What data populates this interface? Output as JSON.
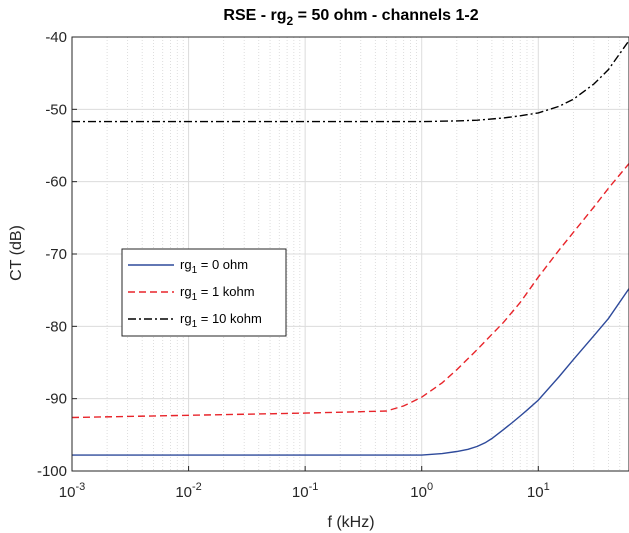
{
  "chart_data": {
    "type": "line",
    "title": {
      "prefix": "RSE - rg",
      "subscript": "2",
      "suffix": " = 50 ohm - channels 1-2"
    },
    "xlabel": "f (kHz)",
    "ylabel": "CT (dB)",
    "x_scale": "log",
    "xlim": [
      0.001,
      60
    ],
    "ylim": [
      -100,
      -40
    ],
    "x_ticks": [
      {
        "base": "10",
        "exp": "-3",
        "value": 0.001
      },
      {
        "base": "10",
        "exp": "-2",
        "value": 0.01
      },
      {
        "base": "10",
        "exp": "-1",
        "value": 0.1
      },
      {
        "base": "10",
        "exp": "0",
        "value": 1
      },
      {
        "base": "10",
        "exp": "1",
        "value": 10
      }
    ],
    "y_ticks": [
      -40,
      -50,
      -60,
      -70,
      -80,
      -90,
      -100
    ],
    "y_tick_labels": [
      "-40",
      "-50",
      "-60",
      "-70",
      "-80",
      "-90",
      "-100"
    ],
    "grid": true,
    "minor_grid_x": true,
    "legend_position": "center-left",
    "series": [
      {
        "label_prefix": "rg",
        "label_sub": "1",
        "label_suffix": " = 0 ohm",
        "color": "#2e4a9b",
        "dash": "solid",
        "x": [
          0.001,
          0.01,
          0.1,
          0.5,
          1.0,
          1.5,
          2.0,
          2.5,
          3.0,
          3.5,
          4.0,
          5.0,
          6.0,
          7.0,
          8.0,
          10.0,
          15.0,
          20.0,
          30.0,
          40.0,
          60.0
        ],
        "y": [
          -97.8,
          -97.8,
          -97.8,
          -97.8,
          -97.8,
          -97.6,
          -97.3,
          -97.0,
          -96.6,
          -96.1,
          -95.5,
          -94.3,
          -93.3,
          -92.4,
          -91.6,
          -90.2,
          -87.0,
          -84.6,
          -81.3,
          -78.9,
          -74.8
        ]
      },
      {
        "label_prefix": "rg",
        "label_sub": "1",
        "label_suffix": " = 1 kohm",
        "color": "#e8242a",
        "dash": "dashed",
        "x": [
          0.001,
          0.01,
          0.1,
          0.3,
          0.5,
          0.7,
          1.0,
          1.5,
          2.0,
          3.0,
          4.0,
          5.0,
          7.0,
          10.0,
          15.0,
          20.0,
          30.0,
          40.0,
          60.0
        ],
        "y": [
          -92.6,
          -92.3,
          -92.0,
          -91.8,
          -91.7,
          -91.0,
          -89.8,
          -87.8,
          -86.0,
          -83.2,
          -81.1,
          -79.5,
          -76.7,
          -73.2,
          -69.5,
          -67.0,
          -63.5,
          -60.9,
          -57.5
        ]
      },
      {
        "label_prefix": "rg",
        "label_sub": "1",
        "label_suffix": " = 10 kohm",
        "color": "#000000",
        "dash": "dashdot",
        "x": [
          0.001,
          0.01,
          0.1,
          1.0,
          2.0,
          3.0,
          5.0,
          7.0,
          10.0,
          15.0,
          20.0,
          30.0,
          40.0,
          60.0
        ],
        "y": [
          -51.7,
          -51.7,
          -51.7,
          -51.7,
          -51.6,
          -51.5,
          -51.2,
          -50.9,
          -50.5,
          -49.6,
          -48.6,
          -46.5,
          -44.5,
          -40.5
        ]
      }
    ]
  }
}
